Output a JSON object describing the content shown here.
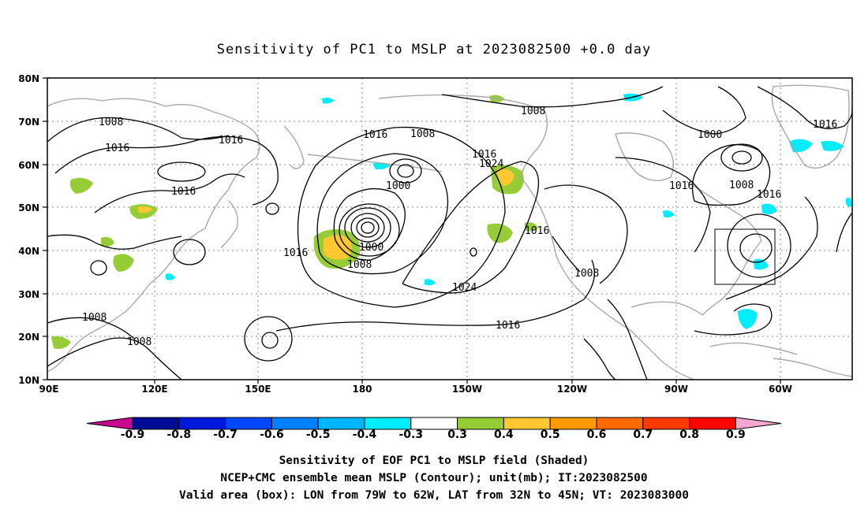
{
  "title": "Sensitivity of PC1 to MSLP at 2023082500 +0.0 day",
  "lat_labels": [
    "80N",
    "70N",
    "60N",
    "50N",
    "40N",
    "30N",
    "20N",
    "10N"
  ],
  "lon_labels": [
    "90E",
    "120E",
    "150E",
    "180",
    "150W",
    "120W",
    "90W",
    "60W"
  ],
  "contour_labels": [
    "1008",
    "1016",
    "1016",
    "1016",
    "1016",
    "1008",
    "1016",
    "1008",
    "1016",
    "1024",
    "1000",
    "1000",
    "1008",
    "1016",
    "1024",
    "1016",
    "1008",
    "1000",
    "1008",
    "1016",
    "1016",
    "1016",
    "1008",
    "1008"
  ],
  "colorbar": {
    "labels": [
      "-0.9",
      "-0.8",
      "-0.7",
      "-0.6",
      "-0.5",
      "-0.4",
      "-0.3",
      "0.3",
      "0.4",
      "0.5",
      "0.6",
      "0.7",
      "0.8",
      "0.9"
    ],
    "colors": {
      "under": "#c8088f",
      "bins": [
        "#000b96",
        "#0019dc",
        "#0047ff",
        "#0081ff",
        "#00b7ff",
        "#00ecff",
        "#ffffff",
        "#96cc36",
        "#ffc831",
        "#ff9a05",
        "#ff6a00",
        "#ff3a00",
        "#fb0500"
      ],
      "over": "#f7a6d2"
    }
  },
  "captions": [
    "Sensitivity of EOF PC1 to MSLP field (Shaded)",
    "NCEP+CMC ensemble mean MSLP (Contour); unit(mb); IT:2023082500",
    "Valid area (box): LON from 79W to 62W, LAT from 32N to 45N; VT: 2023083000"
  ],
  "valid_area": {
    "lon_from_w": 79,
    "lon_to_w": 62,
    "lat_from_n": 32,
    "lat_to_n": 45
  },
  "colors": {
    "coast": "#a8a8a8",
    "contour": "#000000",
    "grid": "#888888"
  }
}
